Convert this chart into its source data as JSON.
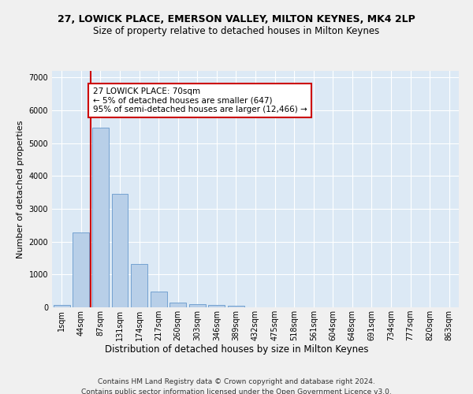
{
  "title1": "27, LOWICK PLACE, EMERSON VALLEY, MILTON KEYNES, MK4 2LP",
  "title2": "Size of property relative to detached houses in Milton Keynes",
  "xlabel": "Distribution of detached houses by size in Milton Keynes",
  "ylabel": "Number of detached properties",
  "footer1": "Contains HM Land Registry data © Crown copyright and database right 2024.",
  "footer2": "Contains public sector information licensed under the Open Government Licence v3.0.",
  "bar_labels": [
    "1sqm",
    "44sqm",
    "87sqm",
    "131sqm",
    "174sqm",
    "217sqm",
    "260sqm",
    "303sqm",
    "346sqm",
    "389sqm",
    "432sqm",
    "475sqm",
    "518sqm",
    "561sqm",
    "604sqm",
    "648sqm",
    "691sqm",
    "734sqm",
    "777sqm",
    "820sqm",
    "863sqm"
  ],
  "bar_values": [
    80,
    2280,
    5480,
    3450,
    1320,
    475,
    155,
    85,
    70,
    45,
    10,
    5,
    2,
    1,
    0,
    0,
    0,
    0,
    0,
    0,
    0
  ],
  "bar_color": "#b8cfe8",
  "bar_edge_color": "#6699cc",
  "annotation_text": "27 LOWICK PLACE: 70sqm\n← 5% of detached houses are smaller (647)\n95% of semi-detached houses are larger (12,466) →",
  "vline_color": "#cc0000",
  "annotation_box_color": "#ffffff",
  "annotation_box_edge": "#cc0000",
  "background_color": "#dce9f5",
  "ylim": [
    0,
    7200
  ],
  "yticks": [
    0,
    1000,
    2000,
    3000,
    4000,
    5000,
    6000,
    7000
  ],
  "grid_color": "#ffffff",
  "title1_fontsize": 9,
  "title2_fontsize": 8.5,
  "xlabel_fontsize": 8.5,
  "ylabel_fontsize": 8,
  "tick_fontsize": 7,
  "footer_fontsize": 6.5,
  "annot_fontsize": 7.5
}
